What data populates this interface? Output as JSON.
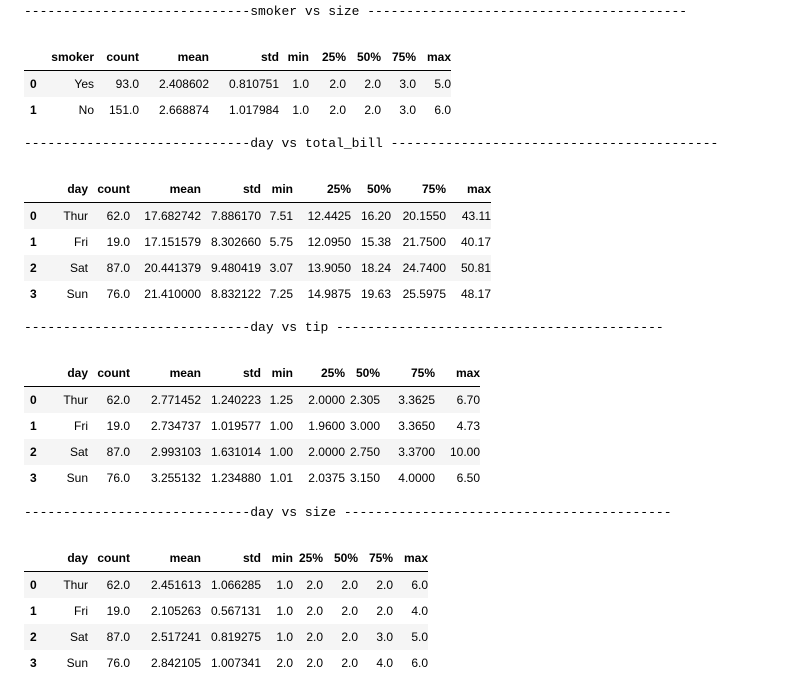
{
  "sections": [
    {
      "header": "-----------------------------smoker vs size -----------------------------------------",
      "columns": [
        "smoker",
        "count",
        "mean",
        "std",
        "min",
        "25%",
        "50%",
        "75%",
        "max"
      ],
      "rows": [
        {
          "index": "0",
          "cells": [
            "Yes",
            "93.0",
            "2.408602",
            "0.810751",
            "1.0",
            "2.0",
            "2.0",
            "3.0",
            "5.0"
          ]
        },
        {
          "index": "1",
          "cells": [
            "No",
            "151.0",
            "2.668874",
            "1.017984",
            "1.0",
            "2.0",
            "2.0",
            "3.0",
            "6.0"
          ]
        }
      ]
    },
    {
      "header": "-----------------------------day vs total_bill ------------------------------------------",
      "columns": [
        "day",
        "count",
        "mean",
        "std",
        "min",
        "25%",
        "50%",
        "75%",
        "max"
      ],
      "rows": [
        {
          "index": "0",
          "cells": [
            "Thur",
            "62.0",
            "17.682742",
            "7.886170",
            "7.51",
            "12.4425",
            "16.20",
            "20.1550",
            "43.11"
          ]
        },
        {
          "index": "1",
          "cells": [
            "Fri",
            "19.0",
            "17.151579",
            "8.302660",
            "5.75",
            "12.0950",
            "15.38",
            "21.7500",
            "40.17"
          ]
        },
        {
          "index": "2",
          "cells": [
            "Sat",
            "87.0",
            "20.441379",
            "9.480419",
            "3.07",
            "13.9050",
            "18.24",
            "24.7400",
            "50.81"
          ]
        },
        {
          "index": "3",
          "cells": [
            "Sun",
            "76.0",
            "21.410000",
            "8.832122",
            "7.25",
            "14.9875",
            "19.63",
            "25.5975",
            "48.17"
          ]
        }
      ]
    },
    {
      "header": "-----------------------------day vs tip ------------------------------------------",
      "columns": [
        "day",
        "count",
        "mean",
        "std",
        "min",
        "25%",
        "50%",
        "75%",
        "max"
      ],
      "rows": [
        {
          "index": "0",
          "cells": [
            "Thur",
            "62.0",
            "2.771452",
            "1.240223",
            "1.25",
            "2.0000",
            "2.305",
            "3.3625",
            "6.70"
          ]
        },
        {
          "index": "1",
          "cells": [
            "Fri",
            "19.0",
            "2.734737",
            "1.019577",
            "1.00",
            "1.9600",
            "3.000",
            "3.3650",
            "4.73"
          ]
        },
        {
          "index": "2",
          "cells": [
            "Sat",
            "87.0",
            "2.993103",
            "1.631014",
            "1.00",
            "2.0000",
            "2.750",
            "3.3700",
            "10.00"
          ]
        },
        {
          "index": "3",
          "cells": [
            "Sun",
            "76.0",
            "3.255132",
            "1.234880",
            "1.01",
            "2.0375",
            "3.150",
            "4.0000",
            "6.50"
          ]
        }
      ]
    },
    {
      "header": "-----------------------------day vs size ------------------------------------------",
      "columns": [
        "day",
        "count",
        "mean",
        "std",
        "min",
        "25%",
        "50%",
        "75%",
        "max"
      ],
      "rows": [
        {
          "index": "0",
          "cells": [
            "Thur",
            "62.0",
            "2.451613",
            "1.066285",
            "1.0",
            "2.0",
            "2.0",
            "2.0",
            "6.0"
          ]
        },
        {
          "index": "1",
          "cells": [
            "Fri",
            "19.0",
            "2.105263",
            "0.567131",
            "1.0",
            "2.0",
            "2.0",
            "2.0",
            "4.0"
          ]
        },
        {
          "index": "2",
          "cells": [
            "Sat",
            "87.0",
            "2.517241",
            "0.819275",
            "1.0",
            "2.0",
            "2.0",
            "3.0",
            "5.0"
          ]
        },
        {
          "index": "3",
          "cells": [
            "Sun",
            "76.0",
            "2.842105",
            "1.007341",
            "2.0",
            "2.0",
            "2.0",
            "4.0",
            "6.0"
          ]
        }
      ]
    }
  ]
}
